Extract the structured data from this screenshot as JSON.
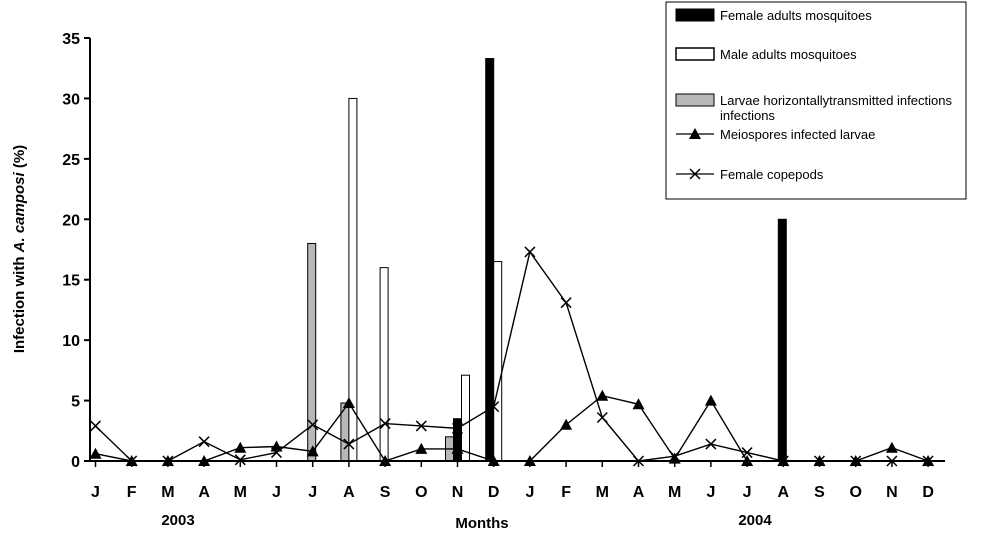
{
  "chart_data": {
    "type": "bar",
    "xlabel": "Months",
    "ylabel_parts": [
      "Infection with ",
      "A. camposi",
      " (%)"
    ],
    "ylim": [
      0,
      35
    ],
    "yticks": [
      0,
      5,
      10,
      15,
      20,
      25,
      30,
      35
    ],
    "categories": [
      "J",
      "F",
      "M",
      "A",
      "M",
      "J",
      "J",
      "A",
      "S",
      "O",
      "N",
      "D",
      "J",
      "F",
      "M",
      "A",
      "M",
      "J",
      "J",
      "A",
      "S",
      "O",
      "N",
      "D"
    ],
    "years": [
      "2003",
      "2004"
    ],
    "grid": false,
    "legend_position": "top-right",
    "series": [
      {
        "name": "Female adults mosquitoes",
        "type": "bar",
        "color": "#000000",
        "values": [
          null,
          null,
          null,
          null,
          null,
          null,
          null,
          null,
          null,
          null,
          3.5,
          33.3,
          null,
          null,
          null,
          null,
          null,
          null,
          null,
          20,
          null,
          null,
          null,
          null
        ]
      },
      {
        "name": "Male adults mosquitoes",
        "type": "bar",
        "color": "#ffffff",
        "values": [
          null,
          null,
          null,
          null,
          null,
          null,
          null,
          30,
          16,
          null,
          7.1,
          16.5,
          null,
          null,
          null,
          null,
          null,
          null,
          null,
          null,
          null,
          null,
          null,
          null
        ]
      },
      {
        "name": "Larvae horizontallytransmitted infections",
        "type": "bar",
        "color": "#b8b8b8",
        "values": [
          null,
          null,
          null,
          null,
          null,
          null,
          18,
          4.8,
          null,
          null,
          2,
          null,
          null,
          null,
          null,
          null,
          null,
          null,
          null,
          null,
          null,
          null,
          null,
          null
        ]
      },
      {
        "name": "Meiospores infected larvae",
        "type": "line",
        "marker": "triangle",
        "values": [
          0.6,
          0,
          0,
          0,
          1.1,
          1.2,
          0.8,
          4.8,
          0,
          1,
          1,
          0,
          0,
          3,
          5.4,
          4.7,
          0.2,
          5,
          0,
          0,
          0,
          0,
          1.1,
          0
        ]
      },
      {
        "name": "Female copepods",
        "type": "line",
        "marker": "x",
        "values": [
          2.9,
          0,
          0,
          1.6,
          0.1,
          0.7,
          3,
          1.4,
          3.1,
          2.9,
          2.7,
          4.5,
          17.3,
          13.1,
          3.6,
          0,
          0.4,
          1.4,
          0.7,
          0,
          0,
          0,
          0,
          0
        ]
      }
    ]
  }
}
